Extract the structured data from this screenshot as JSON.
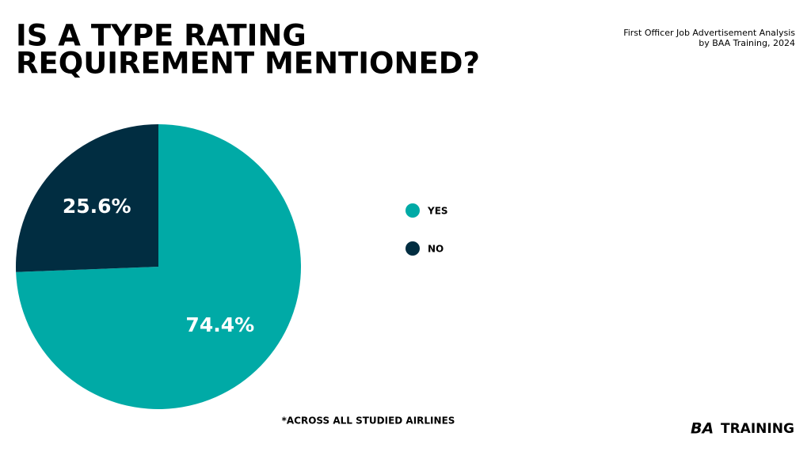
{
  "chart_data": {
    "type": "pie",
    "title": [
      "IS A TYPE RATING",
      "REQUIREMENT MENTIONED?"
    ],
    "subtitle": [
      "First Officer Job Advertisement Analysis",
      "by BAA Training, 2024"
    ],
    "categories": [
      "YES",
      "NO"
    ],
    "values": [
      74.4,
      25.6
    ],
    "value_labels": [
      "74.4%",
      "25.6%"
    ],
    "colors": [
      "#00aaa6",
      "#012d41"
    ],
    "footnote": "*ACROSS ALL STUDIED AIRLINES",
    "logo": [
      "BA",
      "TRAINING"
    ]
  }
}
